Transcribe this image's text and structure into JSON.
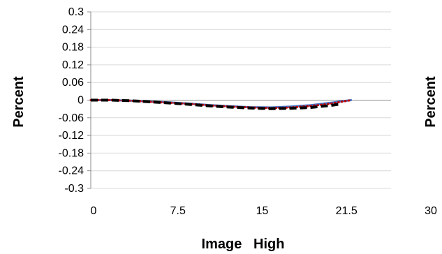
{
  "chart_data": {
    "type": "line",
    "title": "",
    "xlabel": "Image   High",
    "ylabel": "Percent",
    "ylabel_secondary": "Percent",
    "xlim": [
      0,
      30
    ],
    "ylim": [
      -0.3,
      0.3
    ],
    "x_ticks": [
      "0",
      "7.5",
      "15",
      "21.5",
      "30"
    ],
    "y_ticks": [
      "0.3",
      "0.24",
      "0.18",
      "0.12",
      "0.06",
      "0",
      "-0.06",
      "-0.12",
      "-0.18",
      "-0.24",
      "-0.3"
    ],
    "grid": true,
    "legend": "none",
    "series": [
      {
        "color": "#4472C4",
        "style": "solid",
        "x": [
          0,
          2,
          4,
          6,
          8,
          10,
          12,
          14,
          16,
          18,
          20,
          22,
          24,
          25,
          26
        ],
        "y": [
          0,
          0,
          -0.002,
          -0.005,
          -0.008,
          -0.012,
          -0.017,
          -0.021,
          -0.024,
          -0.025,
          -0.022,
          -0.017,
          -0.009,
          -0.004,
          0
        ]
      },
      {
        "color": "#C00000",
        "style": "dotted",
        "x": [
          0,
          2,
          4,
          6,
          8,
          10,
          12,
          14,
          16,
          18,
          20,
          22,
          24,
          25,
          26
        ],
        "y": [
          0,
          0,
          -0.002,
          -0.006,
          -0.009,
          -0.013,
          -0.018,
          -0.022,
          -0.025,
          -0.027,
          -0.025,
          -0.02,
          -0.012,
          -0.006,
          0
        ]
      },
      {
        "color": "#000000",
        "style": "dashed",
        "x": [
          0,
          2,
          4,
          6,
          8,
          10,
          12,
          14,
          16,
          18,
          20,
          22,
          24,
          25
        ],
        "y": [
          0,
          0,
          -0.002,
          -0.006,
          -0.01,
          -0.015,
          -0.02,
          -0.024,
          -0.027,
          -0.029,
          -0.028,
          -0.025,
          -0.018,
          -0.013
        ]
      }
    ]
  }
}
